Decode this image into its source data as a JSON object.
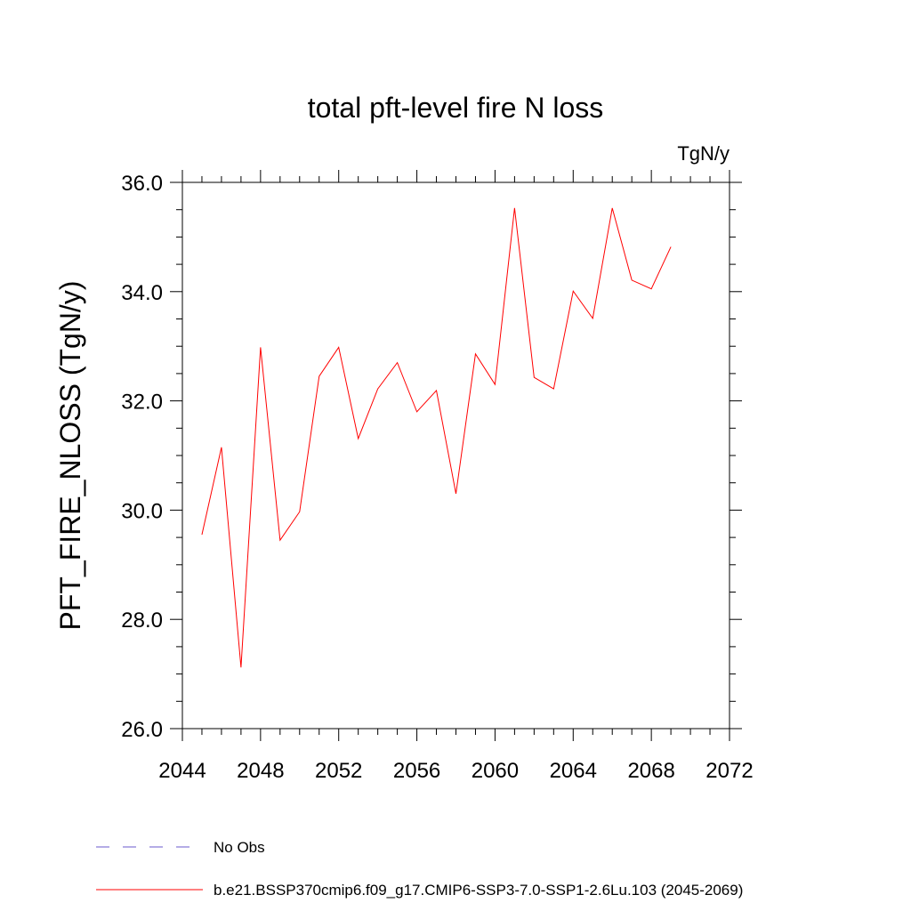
{
  "chart_data": {
    "type": "line",
    "title": "total pft-level fire N loss",
    "units_label": "TgN/y",
    "xlabel": "",
    "ylabel": "PFT_FIRE_NLOSS  (TgN/y)",
    "xlim": [
      2044,
      2072
    ],
    "ylim": [
      26.0,
      36.0
    ],
    "x_ticks": [
      2044,
      2048,
      2052,
      2056,
      2060,
      2064,
      2068,
      2072
    ],
    "y_ticks": [
      "26.0",
      "28.0",
      "30.0",
      "32.0",
      "34.0",
      "36.0"
    ],
    "x_minor_step": 1,
    "y_minor_step": 0.5,
    "grid": false,
    "series": [
      {
        "name": "b.e21.BSSP370cmip6.f09_g17.CMIP6-SSP3-7.0-SSP1-2.6Lu.103 (2045-2069)",
        "color": "#ff0000",
        "x": [
          2045,
          2046,
          2047,
          2048,
          2049,
          2050,
          2051,
          2052,
          2053,
          2054,
          2055,
          2056,
          2057,
          2058,
          2059,
          2060,
          2061,
          2062,
          2063,
          2064,
          2065,
          2066,
          2067,
          2068,
          2069
        ],
        "values": [
          29.55,
          31.15,
          27.12,
          32.98,
          29.45,
          29.97,
          32.45,
          32.98,
          31.31,
          32.22,
          32.7,
          31.8,
          32.19,
          30.3,
          32.86,
          32.3,
          35.53,
          32.43,
          32.22,
          34.01,
          33.51,
          35.53,
          34.21,
          34.05,
          34.82
        ]
      }
    ],
    "legend": [
      {
        "label": "No Obs",
        "color": "#6a5acd",
        "style": "dashed"
      },
      {
        "label": "b.e21.BSSP370cmip6.f09_g17.CMIP6-SSP3-7.0-SSP1-2.6Lu.103 (2045-2069)",
        "color": "#ff0000",
        "style": "solid"
      }
    ],
    "legend_position": "bottom-left"
  }
}
